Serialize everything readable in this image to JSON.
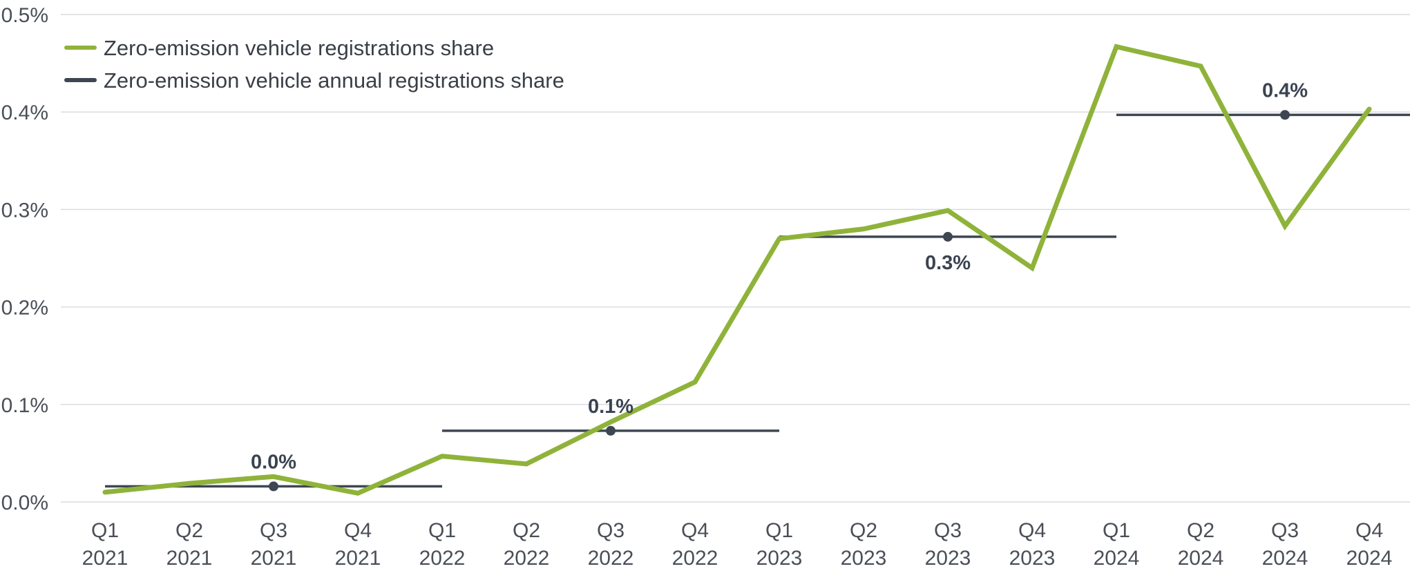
{
  "chart_data": {
    "type": "line",
    "x": [
      "Q1 2021",
      "Q2 2021",
      "Q3 2021",
      "Q4 2021",
      "Q1 2022",
      "Q2 2022",
      "Q3 2022",
      "Q4 2022",
      "Q1 2023",
      "Q2 2023",
      "Q3 2023",
      "Q4 2023",
      "Q1 2024",
      "Q2 2024",
      "Q3 2024",
      "Q4 2024"
    ],
    "x_tick_labels": [
      [
        "Q1",
        "2021"
      ],
      [
        "Q2",
        "2021"
      ],
      [
        "Q3",
        "2021"
      ],
      [
        "Q4",
        "2021"
      ],
      [
        "Q1",
        "2022"
      ],
      [
        "Q2",
        "2022"
      ],
      [
        "Q3",
        "2022"
      ],
      [
        "Q4",
        "2022"
      ],
      [
        "Q1",
        "2023"
      ],
      [
        "Q2",
        "2023"
      ],
      [
        "Q3",
        "2023"
      ],
      [
        "Q4",
        "2023"
      ],
      [
        "Q1",
        "2024"
      ],
      [
        "Q2",
        "2024"
      ],
      [
        "Q3",
        "2024"
      ],
      [
        "Q4",
        "2024"
      ]
    ],
    "ylim": [
      0,
      0.5
    ],
    "y_ticks": [
      0,
      0.1,
      0.2,
      0.3,
      0.4,
      0.5
    ],
    "y_tick_labels": [
      "0.0%",
      "0.1%",
      "0.2%",
      "0.3%",
      "0.4%",
      "0.5%"
    ],
    "grid": true,
    "legend_position": "top-left",
    "series": [
      {
        "name": "Zero-emission vehicle registrations share",
        "color": "#8fb33a",
        "values": [
          0.01,
          0.019,
          0.026,
          0.009,
          0.047,
          0.039,
          0.082,
          0.123,
          0.27,
          0.28,
          0.299,
          0.24,
          0.467,
          0.447,
          0.283,
          0.403
        ]
      }
    ],
    "annual_series": {
      "name": "Zero-emission vehicle annual registrations share",
      "color": "#3d4652",
      "segments": [
        {
          "year": "2021",
          "value": 0.016,
          "label": "0.0%",
          "label_side": "above"
        },
        {
          "year": "2022",
          "value": 0.073,
          "label": "0.1%",
          "label_side": "above"
        },
        {
          "year": "2023",
          "value": 0.272,
          "label": "0.3%",
          "label_side": "below"
        },
        {
          "year": "2024",
          "value": 0.397,
          "label": "0.4%",
          "label_side": "above"
        }
      ]
    }
  }
}
